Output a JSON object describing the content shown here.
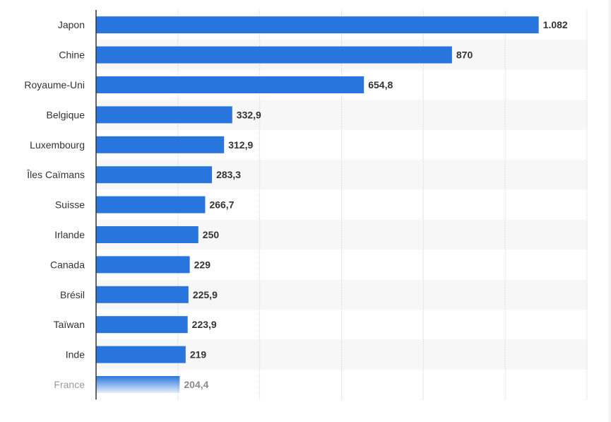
{
  "chart_data": {
    "type": "bar",
    "orientation": "horizontal",
    "categories": [
      "Japon",
      "Chine",
      "Royaume-Uni",
      "Belgique",
      "Luxembourg",
      "Îles Caïmans",
      "Suisse",
      "Irlande",
      "Canada",
      "Brésil",
      "Taïwan",
      "Inde",
      "France"
    ],
    "values": [
      1082,
      870,
      654.8,
      332.9,
      312.9,
      283.3,
      266.7,
      250,
      229,
      225.9,
      223.9,
      219,
      204.4
    ],
    "value_labels": [
      "1.082",
      "870",
      "654,8",
      "332,9",
      "312,9",
      "283,3",
      "266,7",
      "250",
      "229",
      "225,9",
      "223,9",
      "219",
      "204,4"
    ],
    "faded_categories": [
      "France"
    ],
    "xlim": [
      0,
      1200
    ],
    "grid": true,
    "bar_color": "#2876dd",
    "title": "",
    "xlabel": "",
    "ylabel": ""
  },
  "colors": {
    "bar": "#2876dd",
    "stripe": "#f7f7f7",
    "grid": "#d8d8d8",
    "axis": "#333333",
    "text": "#333333"
  }
}
